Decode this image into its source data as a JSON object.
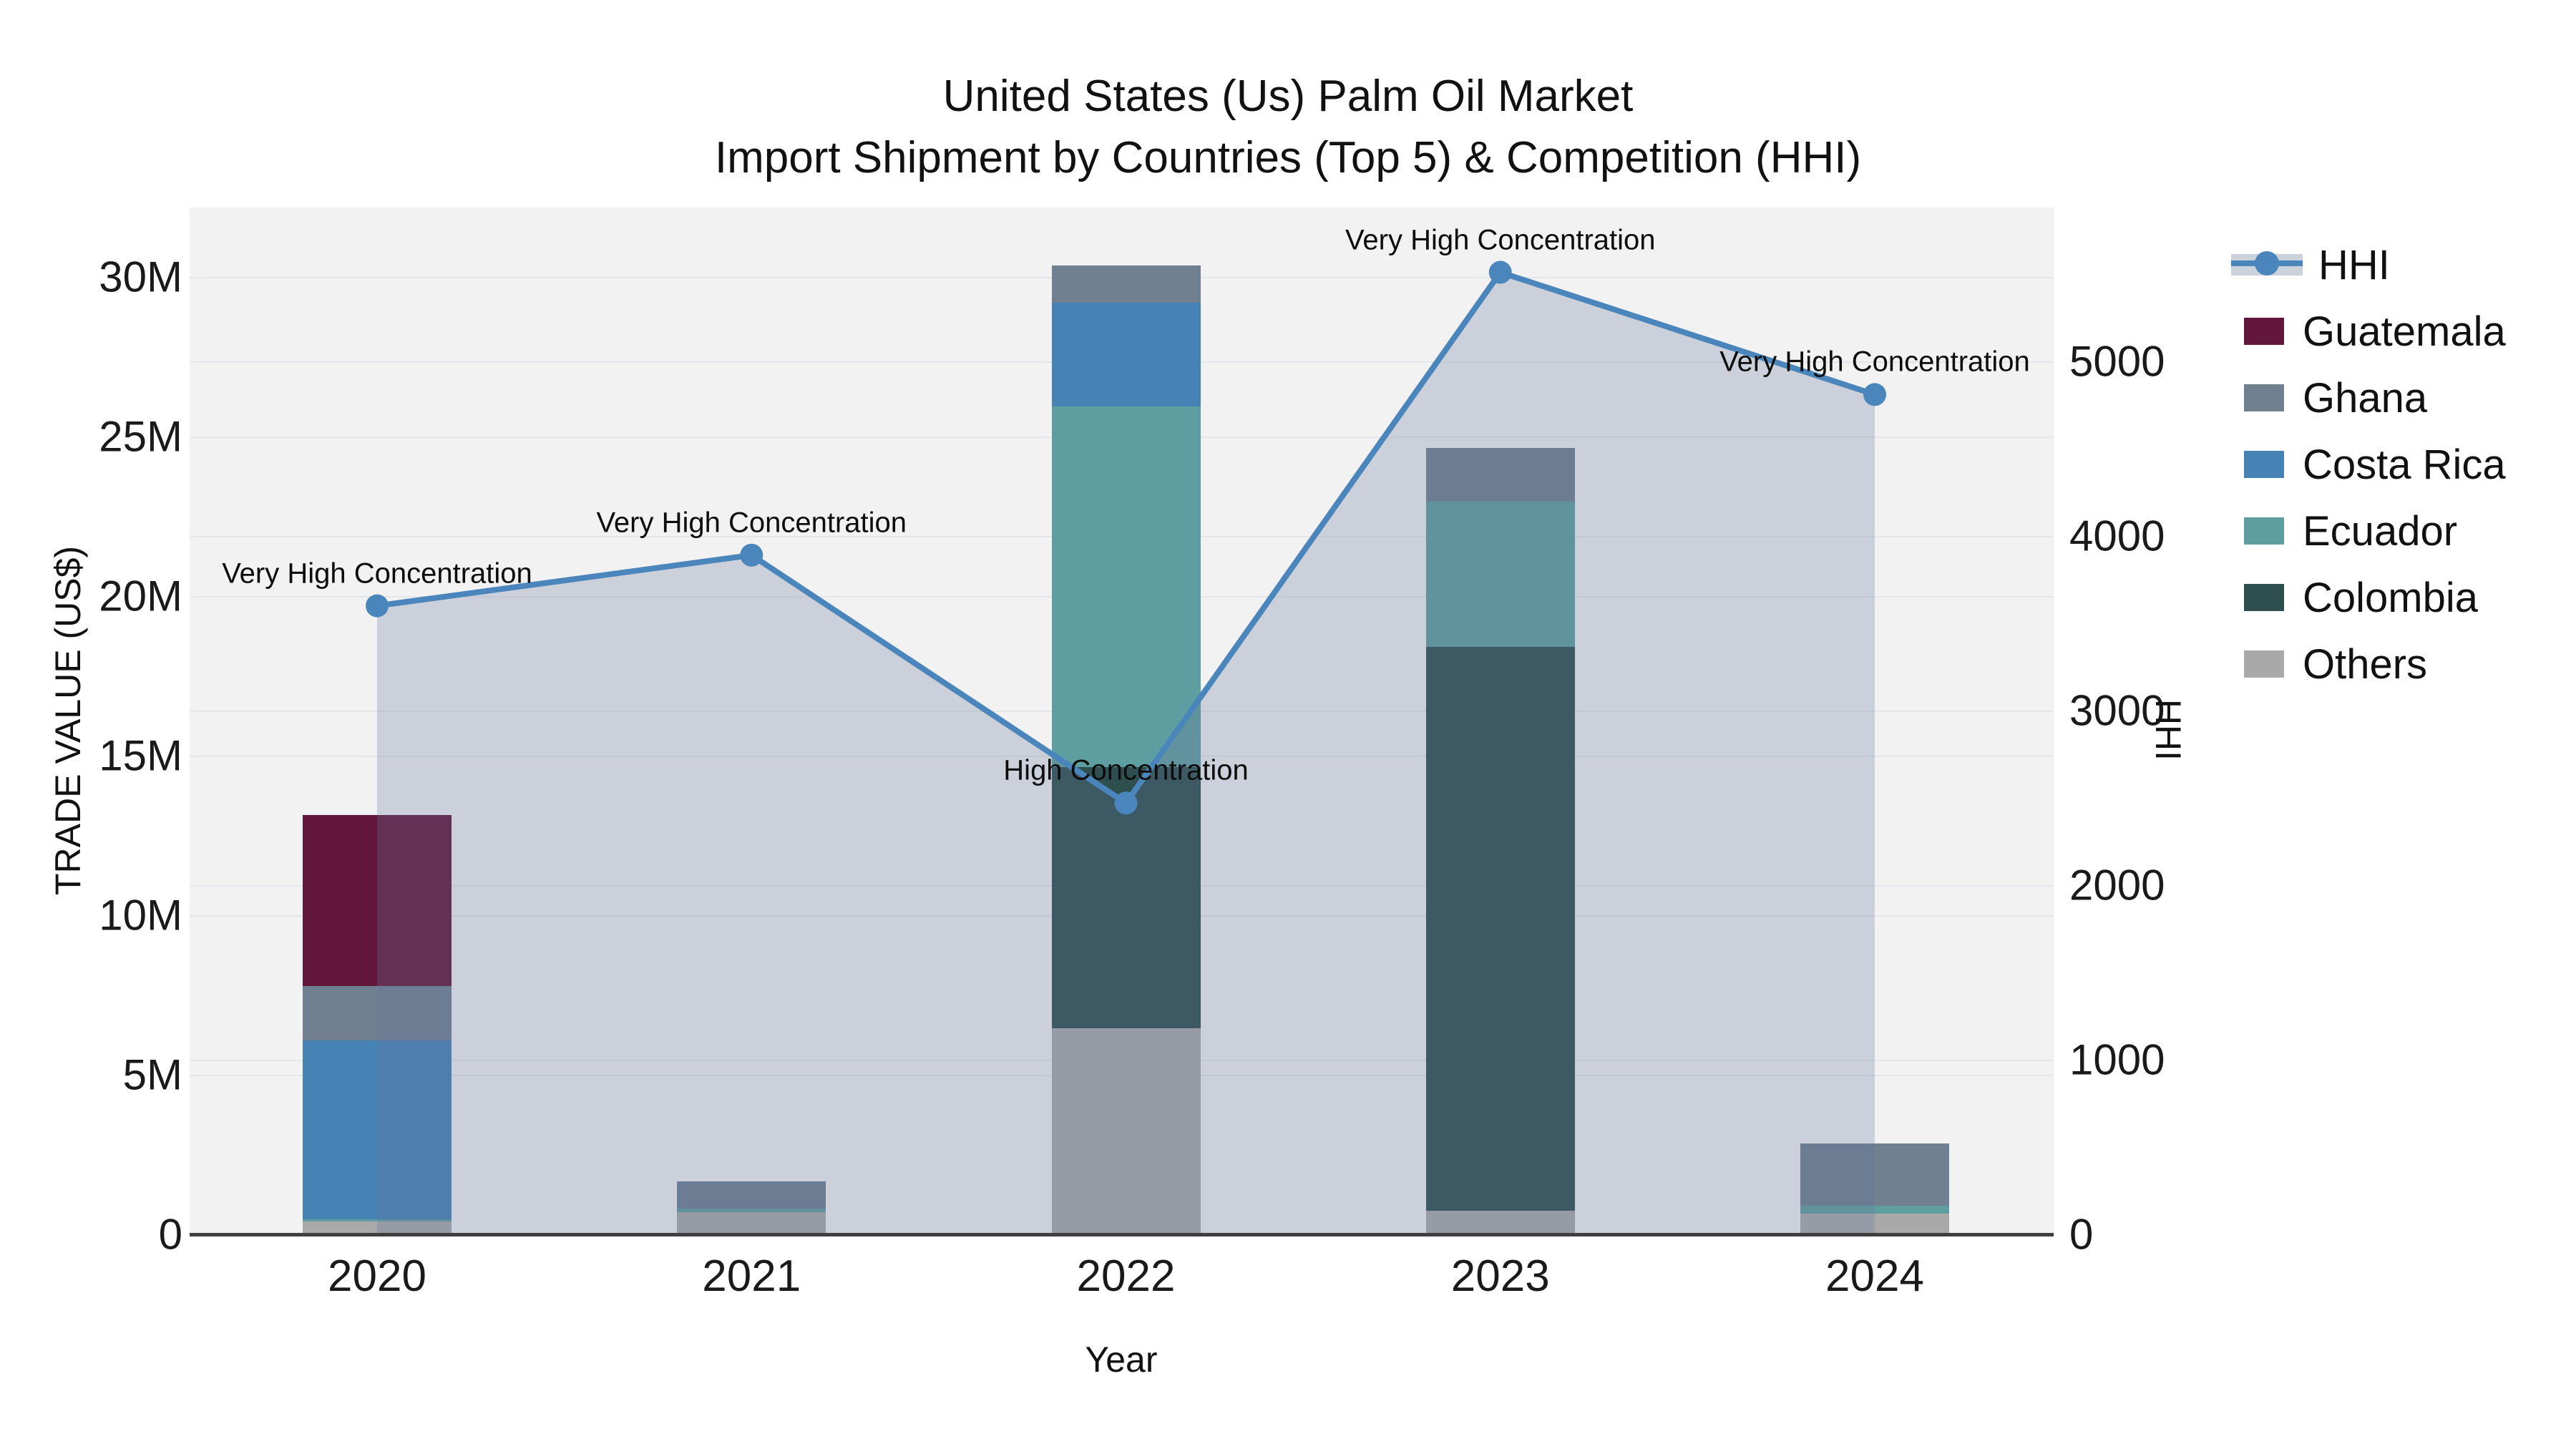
{
  "title": {
    "line1": "United States (Us) Palm Oil Market",
    "line2": "Import Shipment by Countries (Top 5) & Competition (HHI)"
  },
  "axes": {
    "x": {
      "title": "Year",
      "categories": [
        "2020",
        "2021",
        "2022",
        "2023",
        "2024"
      ]
    },
    "y_left": {
      "title": "TRADE VALUE (US$)",
      "tick_labels": [
        "0",
        "5M",
        "10M",
        "15M",
        "20M",
        "25M",
        "30M"
      ],
      "tick_values": [
        0,
        5,
        10,
        15,
        20,
        25,
        30
      ]
    },
    "y_right": {
      "title": "HHI",
      "tick_labels": [
        "0",
        "1000",
        "2000",
        "3000",
        "4000",
        "5000"
      ],
      "tick_values": [
        0,
        1000,
        2000,
        3000,
        4000,
        5000
      ]
    }
  },
  "legend": {
    "items": [
      {
        "label": "HHI",
        "type": "line",
        "color": "#4A86BC"
      },
      {
        "label": "Guatemala",
        "type": "box",
        "color": "#64173C"
      },
      {
        "label": "Ghana",
        "type": "box",
        "color": "#708090"
      },
      {
        "label": "Costa Rica",
        "type": "box",
        "color": "#4682B4"
      },
      {
        "label": "Ecuador",
        "type": "box",
        "color": "#5F9EA0"
      },
      {
        "label": "Colombia",
        "type": "box",
        "color": "#2F4F4F"
      },
      {
        "label": "Others",
        "type": "box",
        "color": "#A9A9A9"
      }
    ]
  },
  "chart_data": {
    "type": "combo",
    "subtype": "stacked-bar-plus-line",
    "categories": [
      "2020",
      "2021",
      "2022",
      "2023",
      "2024"
    ],
    "bar_value_unit": "million US$",
    "bar_stack_order_bottom_to_top": [
      "Others",
      "Colombia",
      "Ecuador",
      "Costa Rica",
      "Ghana",
      "Guatemala"
    ],
    "bar_series": [
      {
        "name": "Others",
        "color": "#A9A9A9",
        "values": [
          0.4,
          0.7,
          6.45,
          0.75,
          0.65
        ]
      },
      {
        "name": "Colombia",
        "color": "#2F4F4F",
        "values": [
          0,
          0,
          8.2,
          17.65,
          0
        ]
      },
      {
        "name": "Ecuador",
        "color": "#5F9EA0",
        "values": [
          0.08,
          0.1,
          11.3,
          4.55,
          0.25
        ]
      },
      {
        "name": "Costa Rica",
        "color": "#4682B4",
        "values": [
          5.6,
          0,
          3.25,
          0,
          0
        ]
      },
      {
        "name": "Ghana",
        "color": "#708090",
        "values": [
          1.7,
          0.85,
          1.15,
          1.7,
          1.95
        ]
      },
      {
        "name": "Guatemala",
        "color": "#64173C",
        "values": [
          5.35,
          0,
          0,
          0,
          0
        ]
      }
    ],
    "bar_totals": [
      13.13,
      1.65,
      30.35,
      24.65,
      2.85
    ],
    "line_series": {
      "name": "HHI",
      "color": "#4A86BC",
      "values": [
        3600,
        3890,
        2470,
        5510,
        4810
      ],
      "area_fill": "rgba(100,118,155,0.27)",
      "marker": "circle"
    },
    "annotations": [
      {
        "x": "2020",
        "text": "Very High Concentration"
      },
      {
        "x": "2021",
        "text": "Very High Concentration"
      },
      {
        "x": "2022",
        "text": "High Concentration"
      },
      {
        "x": "2023",
        "text": "Very High Concentration"
      },
      {
        "x": "2024",
        "text": "Very High Concentration"
      }
    ],
    "y_left_range": [
      0,
      32.2
    ],
    "y_right_range": [
      0,
      5880
    ],
    "grid": true,
    "legend_position": "right",
    "plot_background": "#F2F2F2"
  }
}
